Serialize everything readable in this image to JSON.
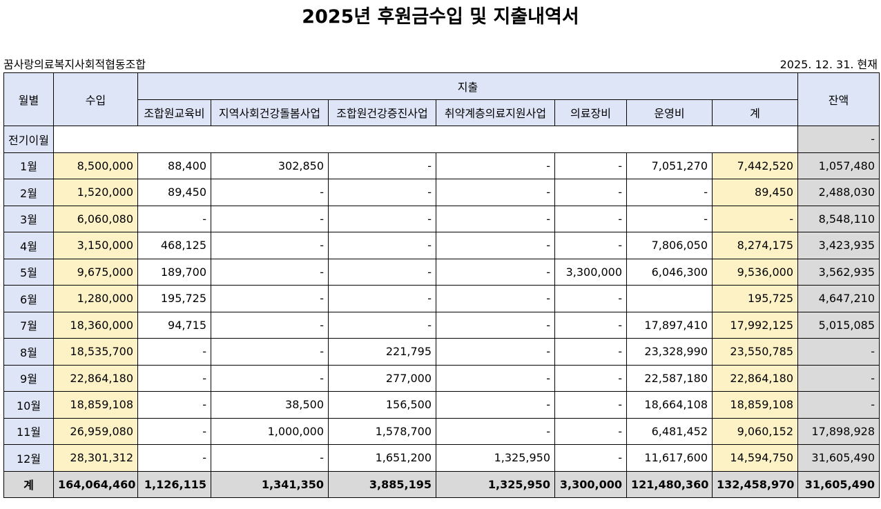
{
  "header": {
    "title": "2025년 후원금수입 및 지출내역서",
    "organization": "꿈사랑의료복지사회적협동조합",
    "date": "2025. 12. 31. 현재"
  },
  "table": {
    "columns": {
      "month": "월별",
      "income": "수입",
      "expense": "지출",
      "balance": "잔액",
      "expense_items": [
        "조합원교육비",
        "지역사회건강돌봄사업",
        "조합원건강증진사업",
        "취약계층의료지원사업",
        "의료장비",
        "운영비",
        "계"
      ]
    },
    "carried_over": {
      "label": "전기이월",
      "balance": "-"
    },
    "rows": [
      [
        "1월",
        "8,500,000",
        "88,400",
        "302,850",
        "-",
        "-",
        "-",
        "7,051,270",
        "7,442,520",
        "1,057,480"
      ],
      [
        "2월",
        "1,520,000",
        "89,450",
        "-",
        "-",
        "-",
        "-",
        "-",
        "89,450",
        "2,488,030"
      ],
      [
        "3월",
        "6,060,080",
        "-",
        "-",
        "-",
        "-",
        "-",
        "-",
        "-",
        "8,548,110"
      ],
      [
        "4월",
        "3,150,000",
        "468,125",
        "-",
        "-",
        "-",
        "-",
        "7,806,050",
        "8,274,175",
        "3,423,935"
      ],
      [
        "5월",
        "9,675,000",
        "189,700",
        "-",
        "-",
        "-",
        "3,300,000",
        "6,046,300",
        "9,536,000",
        "3,562,935"
      ],
      [
        "6월",
        "1,280,000",
        "195,725",
        "-",
        "-",
        "-",
        "-",
        null,
        "195,725",
        "4,647,210"
      ],
      [
        "7월",
        "18,360,000",
        "94,715",
        "-",
        "-",
        "-",
        "-",
        "17,897,410",
        "17,992,125",
        "5,015,085"
      ],
      [
        "8월",
        "18,535,700",
        "-",
        "-",
        "221,795",
        "-",
        "-",
        "23,328,990",
        "23,550,785",
        "-"
      ],
      [
        "9월",
        "22,864,180",
        "-",
        "-",
        "277,000",
        "-",
        "-",
        "22,587,180",
        "22,864,180",
        "-"
      ],
      [
        "10월",
        "18,859,108",
        "-",
        "38,500",
        "156,500",
        "-",
        "-",
        "18,664,108",
        "18,859,108",
        "-"
      ],
      [
        "11월",
        "26,959,080",
        "-",
        "1,000,000",
        "1,578,700",
        "-",
        "-",
        "6,481,452",
        "9,060,152",
        "17,898,928"
      ],
      [
        "12월",
        "28,301,312",
        "-",
        "-",
        "1,651,200",
        "1,325,950",
        "-",
        "11,617,600",
        "14,594,750",
        "31,605,490"
      ]
    ],
    "total": [
      "계",
      "164,064,460",
      "1,126,115",
      "1,341,350",
      "3,885,195",
      "1,325,950",
      "3,300,000",
      "121,480,360",
      "132,458,970",
      "31,605,490"
    ]
  }
}
